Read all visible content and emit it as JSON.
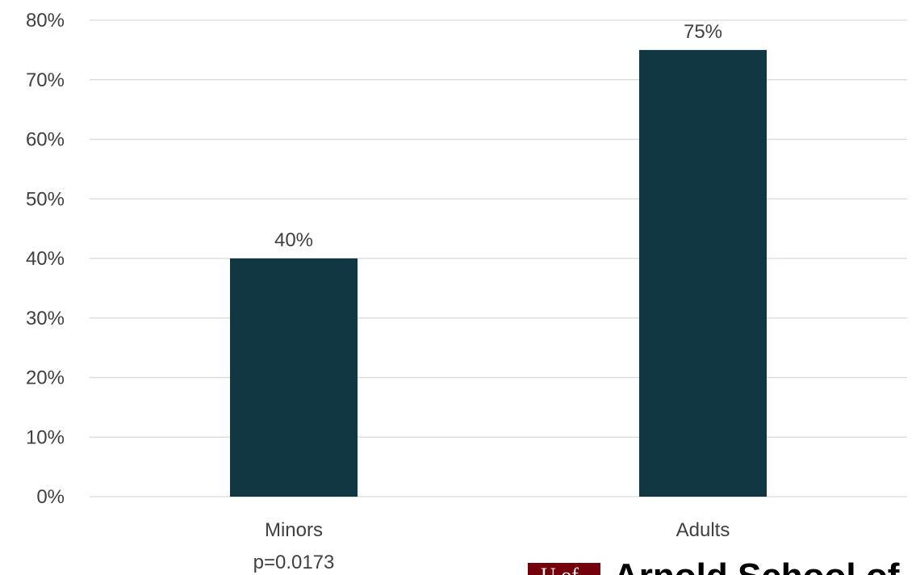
{
  "chart_data": {
    "type": "bar",
    "categories": [
      "Minors",
      "Adults"
    ],
    "values": [
      40,
      75
    ],
    "data_labels": [
      "40%",
      "75%"
    ],
    "y_ticks": [
      "0%",
      "10%",
      "20%",
      "30%",
      "40%",
      "50%",
      "60%",
      "70%",
      "80%"
    ],
    "ylim": [
      0,
      80
    ],
    "grid": true,
    "legend": "none",
    "annotations": [
      "p=0.0173"
    ]
  },
  "colors": {
    "bar": "#103742",
    "grid": "#d9d9d9",
    "logo_mark": "#73000a"
  },
  "logo": {
    "text": "Arnold School of",
    "mark_text": "U of"
  }
}
